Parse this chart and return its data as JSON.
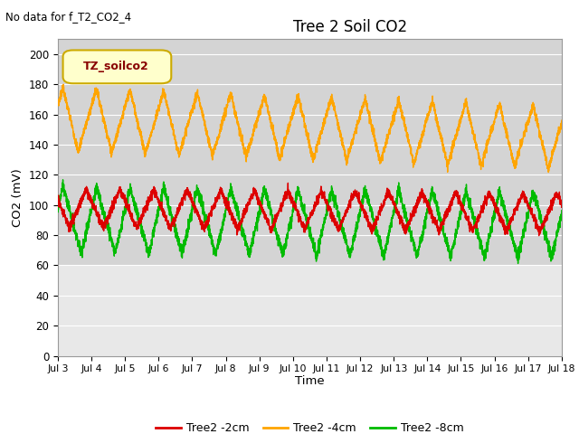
{
  "title": "Tree 2 Soil CO2",
  "subtitle": "No data for f_T2_CO2_4",
  "ylabel": "CO2 (mV)",
  "xlabel": "Time",
  "legend_label": "TZ_soilco2",
  "xlim": [
    3,
    18
  ],
  "ylim": [
    0,
    210
  ],
  "yticks": [
    0,
    20,
    40,
    60,
    80,
    100,
    120,
    140,
    160,
    180,
    200
  ],
  "xtick_positions": [
    3,
    4,
    5,
    6,
    7,
    8,
    9,
    10,
    11,
    12,
    13,
    14,
    15,
    16,
    17,
    18
  ],
  "xtick_labels": [
    "Jul 3",
    "Jul 4",
    "Jul 5",
    "Jul 6",
    "Jul 7",
    "Jul 8",
    "Jul 9",
    "Jul 10",
    "Jul 11",
    "Jul 12",
    "Jul 13",
    "Jul 14",
    "Jul 15",
    "Jul 16",
    "Jul 17",
    "Jul 18"
  ],
  "color_2cm": "#dd0000",
  "color_4cm": "#ffa500",
  "color_8cm": "#00bb00",
  "fig_bg": "#ffffff",
  "plot_bg": "#e8e8e8",
  "active_bg": "#d4d4d4",
  "grid_color": "#ffffff",
  "legend_items": [
    "Tree2 -2cm",
    "Tree2 -4cm",
    "Tree2 -8cm"
  ],
  "active_ymin": 60,
  "active_ymax": 210
}
